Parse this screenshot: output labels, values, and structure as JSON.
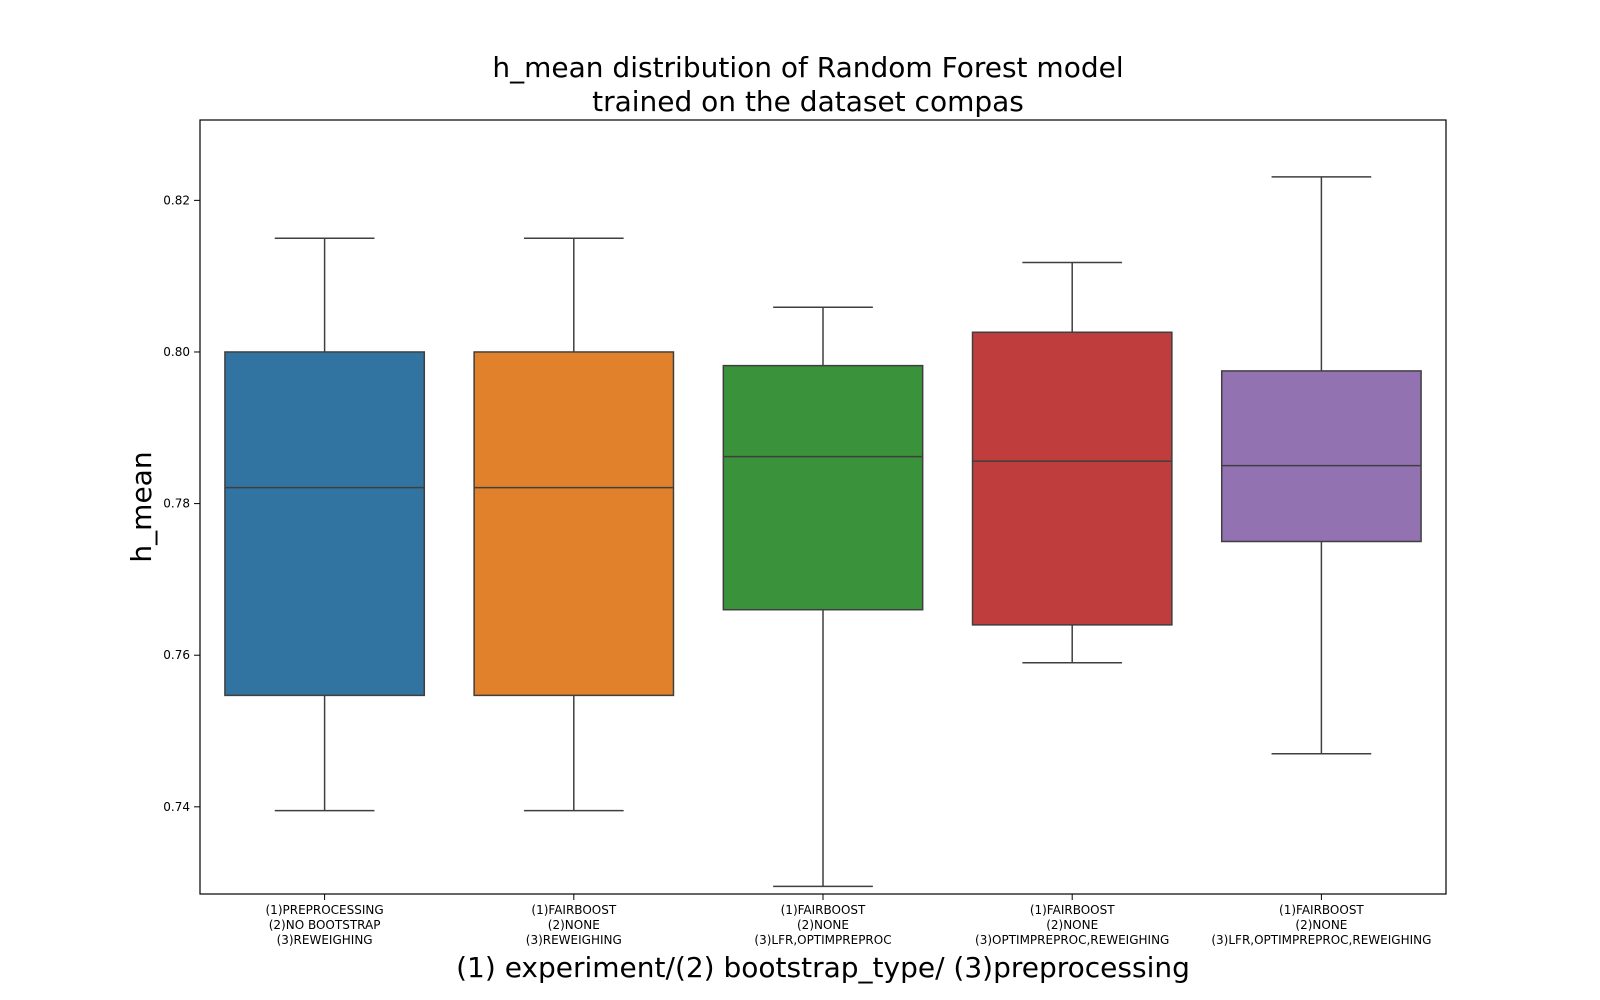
{
  "chart_data": {
    "type": "box",
    "title": [
      "h_mean distribution of Random Forest model",
      "trained on the dataset compas"
    ],
    "xlabel": "(1) experiment/(2) bootstrap_type/ (3)preprocessing",
    "ylabel": "h_mean",
    "ylim": [
      0.7285,
      0.8306
    ],
    "yticks": [
      0.74,
      0.76,
      0.78,
      0.8,
      0.82
    ],
    "ytick_labels": [
      "0.74",
      "0.76",
      "0.78",
      "0.80",
      "0.82"
    ],
    "grid": false,
    "categories": [
      [
        "(1)PREPROCESSING",
        "(2)NO BOOTSTRAP",
        "(3)REWEIGHING"
      ],
      [
        "(1)FAIRBOOST",
        "(2)NONE",
        "(3)REWEIGHING"
      ],
      [
        "(1)FAIRBOOST",
        "(2)NONE",
        "(3)LFR,OPTIMPREPROC"
      ],
      [
        "(1)FAIRBOOST",
        "(2)NONE",
        "(3)OPTIMPREPROC,REWEIGHING"
      ],
      [
        "(1)FAIRBOOST",
        "(2)NONE",
        "(3)LFR,OPTIMPREPROC,REWEIGHING"
      ]
    ],
    "boxes": [
      {
        "whisker_low": 0.7395,
        "q1": 0.7547,
        "median": 0.7821,
        "q3": 0.8,
        "whisker_high": 0.815,
        "color": "#3274a1"
      },
      {
        "whisker_low": 0.7395,
        "q1": 0.7547,
        "median": 0.7821,
        "q3": 0.8,
        "whisker_high": 0.815,
        "color": "#e1812c"
      },
      {
        "whisker_low": 0.7295,
        "q1": 0.766,
        "median": 0.7862,
        "q3": 0.7982,
        "whisker_high": 0.8059,
        "color": "#3a923a"
      },
      {
        "whisker_low": 0.759,
        "q1": 0.764,
        "median": 0.7856,
        "q3": 0.8026,
        "whisker_high": 0.8118,
        "color": "#c03d3e"
      },
      {
        "whisker_low": 0.747,
        "q1": 0.775,
        "median": 0.785,
        "q3": 0.7975,
        "whisker_high": 0.8231,
        "color": "#9372b2"
      }
    ]
  }
}
